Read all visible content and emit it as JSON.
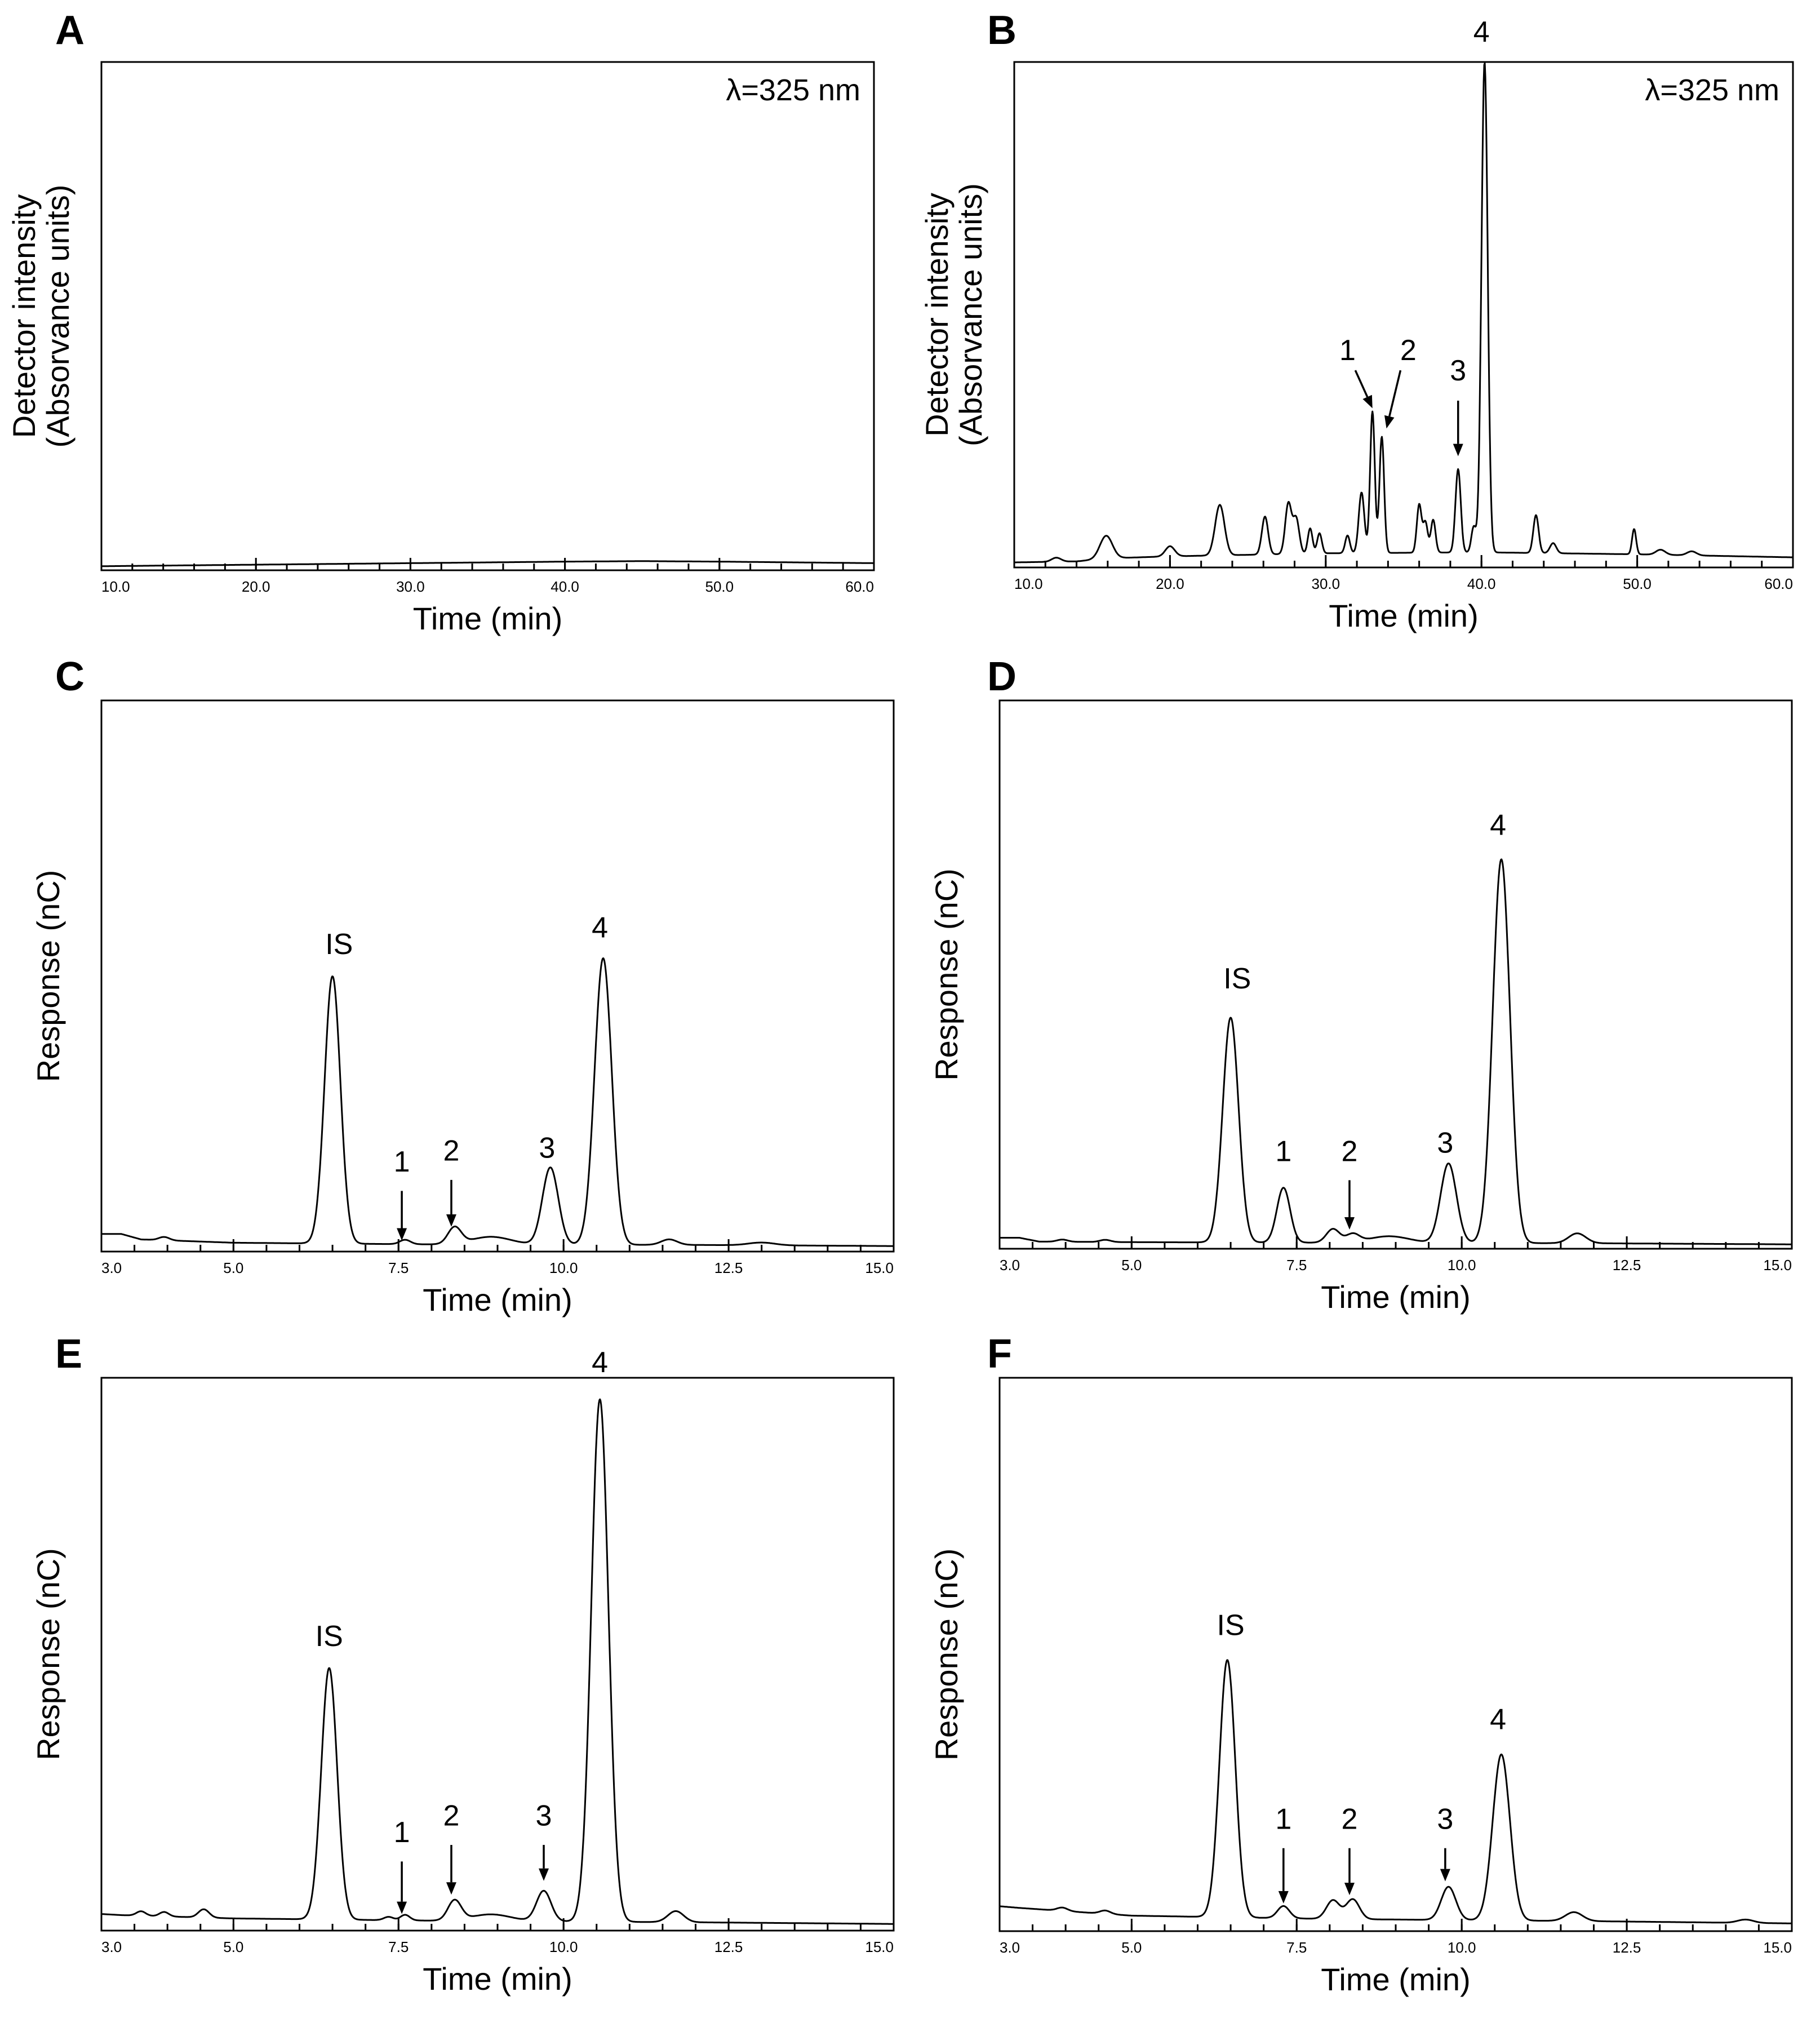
{
  "figure": {
    "colors": {
      "background": "#ffffff",
      "ink": "#000000"
    }
  },
  "chart_data": [
    {
      "id": "A",
      "panel_label": "A",
      "type": "line",
      "xlabel": "Time (min)",
      "ylabel": [
        "Detector intensity",
        "(Absorvance units)"
      ],
      "xlim": [
        10.0,
        60.0
      ],
      "ylim": [
        0,
        1
      ],
      "xticks": [
        10.0,
        20.0,
        30.0,
        40.0,
        50.0,
        60.0
      ],
      "xtick_labels": [
        "10.0",
        "20.0",
        "30.0",
        "40.0",
        "50.0",
        "60.0"
      ],
      "annotation": "λ=325 nm",
      "baseline": [
        [
          10,
          0.008
        ],
        [
          20,
          0.011
        ],
        [
          30,
          0.014
        ],
        [
          40,
          0.017
        ],
        [
          45,
          0.018
        ],
        [
          50,
          0.017
        ],
        [
          60,
          0.014
        ]
      ],
      "peaks": [],
      "labels": []
    },
    {
      "id": "B",
      "panel_label": "B",
      "type": "line",
      "xlabel": "Time (min)",
      "ylabel": [
        "Detector intensity",
        "(Absorvance units)"
      ],
      "xlim": [
        10.0,
        60.0
      ],
      "ylim": [
        0,
        1
      ],
      "xticks": [
        10.0,
        20.0,
        30.0,
        40.0,
        50.0,
        60.0
      ],
      "xtick_labels": [
        "10.0",
        "20.0",
        "30.0",
        "40.0",
        "50.0",
        "60.0"
      ],
      "annotation": "λ=325 nm",
      "baseline": [
        [
          10,
          0.01
        ],
        [
          14,
          0.012
        ],
        [
          16,
          0.018
        ],
        [
          20,
          0.022
        ],
        [
          30,
          0.028
        ],
        [
          40,
          0.03
        ],
        [
          50,
          0.026
        ],
        [
          60,
          0.02
        ]
      ],
      "peaks": [
        {
          "x": 12.7,
          "h": 0.008,
          "w": 0.3
        },
        {
          "x": 15.9,
          "h": 0.045,
          "w": 0.4
        },
        {
          "x": 20.0,
          "h": 0.02,
          "w": 0.3
        },
        {
          "x": 23.2,
          "h": 0.1,
          "w": 0.3
        },
        {
          "x": 26.1,
          "h": 0.075,
          "w": 0.2
        },
        {
          "x": 27.6,
          "h": 0.1,
          "w": 0.2
        },
        {
          "x": 28.1,
          "h": 0.07,
          "w": 0.2
        },
        {
          "x": 29.0,
          "h": 0.05,
          "w": 0.15
        },
        {
          "x": 29.6,
          "h": 0.04,
          "w": 0.15
        },
        {
          "x": 31.4,
          "h": 0.035,
          "w": 0.15
        },
        {
          "x": 32.3,
          "h": 0.12,
          "w": 0.18
        },
        {
          "x": 33.0,
          "h": 0.28,
          "w": 0.15
        },
        {
          "x": 33.6,
          "h": 0.23,
          "w": 0.15
        },
        {
          "x": 36.0,
          "h": 0.095,
          "w": 0.15
        },
        {
          "x": 36.4,
          "h": 0.06,
          "w": 0.15
        },
        {
          "x": 36.9,
          "h": 0.065,
          "w": 0.15
        },
        {
          "x": 38.5,
          "h": 0.165,
          "w": 0.17
        },
        {
          "x": 39.5,
          "h": 0.05,
          "w": 0.15
        },
        {
          "x": 40.2,
          "h": 0.97,
          "w": 0.2
        },
        {
          "x": 43.5,
          "h": 0.075,
          "w": 0.17
        },
        {
          "x": 44.6,
          "h": 0.02,
          "w": 0.2
        },
        {
          "x": 49.8,
          "h": 0.05,
          "w": 0.13
        },
        {
          "x": 51.5,
          "h": 0.01,
          "w": 0.3
        },
        {
          "x": 53.5,
          "h": 0.008,
          "w": 0.3
        }
      ],
      "labels": [
        {
          "text": "1",
          "x": 31.4,
          "y": 0.41,
          "arrow": [
            [
              31.9,
              0.39
            ],
            [
              33.0,
              0.315
            ]
          ]
        },
        {
          "text": "2",
          "x": 35.3,
          "y": 0.41,
          "arrow": [
            [
              34.8,
              0.39
            ],
            [
              33.9,
              0.275
            ]
          ]
        },
        {
          "text": "3",
          "x": 38.5,
          "y": 0.37,
          "arrow": [
            [
              38.5,
              0.33
            ],
            [
              38.5,
              0.22
            ]
          ]
        },
        {
          "text": "4",
          "x": 40.0,
          "y": 1.04
        }
      ]
    },
    {
      "id": "C",
      "panel_label": "C",
      "type": "line",
      "xlabel": "Time (min)",
      "ylabel": [
        "Response (nC)"
      ],
      "xlim": [
        3.0,
        15.0
      ],
      "ylim": [
        0,
        1
      ],
      "xticks": [
        3.0,
        5.0,
        7.5,
        10.0,
        12.5,
        15.0
      ],
      "xtick_labels": [
        "3.0",
        "5.0",
        "7.5",
        "10.0",
        "12.5",
        "15.0"
      ],
      "annotation": "",
      "baseline": [
        [
          3,
          0.032
        ],
        [
          3.3,
          0.032
        ],
        [
          3.6,
          0.022
        ],
        [
          5,
          0.016
        ],
        [
          8,
          0.013
        ],
        [
          12,
          0.012
        ],
        [
          15,
          0.01
        ]
      ],
      "peaks": [
        {
          "x": 3.95,
          "h": 0.006,
          "w": 0.08
        },
        {
          "x": 6.5,
          "h": 0.485,
          "w": 0.12
        },
        {
          "x": 7.6,
          "h": 0.008,
          "w": 0.08
        },
        {
          "x": 8.35,
          "h": 0.03,
          "w": 0.1
        },
        {
          "x": 8.9,
          "h": 0.014,
          "w": 0.3
        },
        {
          "x": 9.8,
          "h": 0.14,
          "w": 0.12
        },
        {
          "x": 10.6,
          "h": 0.52,
          "w": 0.13
        },
        {
          "x": 11.6,
          "h": 0.01,
          "w": 0.12
        },
        {
          "x": 13.0,
          "h": 0.005,
          "w": 0.2
        }
      ],
      "labels": [
        {
          "text": "IS",
          "x": 6.6,
          "y": 0.54
        },
        {
          "text": "1",
          "x": 7.55,
          "y": 0.145,
          "arrow": [
            [
              7.55,
              0.11
            ],
            [
              7.55,
              0.02
            ]
          ]
        },
        {
          "text": "2",
          "x": 8.3,
          "y": 0.165,
          "arrow": [
            [
              8.3,
              0.13
            ],
            [
              8.3,
              0.045
            ]
          ]
        },
        {
          "text": "3",
          "x": 9.75,
          "y": 0.17
        },
        {
          "text": "4",
          "x": 10.55,
          "y": 0.57
        }
      ]
    },
    {
      "id": "D",
      "panel_label": "D",
      "type": "line",
      "xlabel": "Time (min)",
      "ylabel": [
        "Response (nC)"
      ],
      "xlim": [
        3.0,
        15.0
      ],
      "ylim": [
        0,
        1
      ],
      "xticks": [
        3.0,
        5.0,
        7.5,
        10.0,
        12.5,
        15.0
      ],
      "xtick_labels": [
        "3.0",
        "5.0",
        "7.5",
        "10.0",
        "12.5",
        "15.0"
      ],
      "annotation": "",
      "baseline": [
        [
          3,
          0.02
        ],
        [
          3.3,
          0.02
        ],
        [
          3.6,
          0.013
        ],
        [
          5,
          0.012
        ],
        [
          8,
          0.011
        ],
        [
          12,
          0.01
        ],
        [
          15,
          0.008
        ]
      ],
      "peaks": [
        {
          "x": 3.95,
          "h": 0.004,
          "w": 0.08
        },
        {
          "x": 4.6,
          "h": 0.004,
          "w": 0.08
        },
        {
          "x": 6.5,
          "h": 0.41,
          "w": 0.12
        },
        {
          "x": 7.3,
          "h": 0.1,
          "w": 0.1
        },
        {
          "x": 8.05,
          "h": 0.025,
          "w": 0.1
        },
        {
          "x": 8.35,
          "h": 0.015,
          "w": 0.1
        },
        {
          "x": 8.9,
          "h": 0.012,
          "w": 0.3
        },
        {
          "x": 9.8,
          "h": 0.145,
          "w": 0.12
        },
        {
          "x": 10.6,
          "h": 0.7,
          "w": 0.13
        },
        {
          "x": 11.75,
          "h": 0.018,
          "w": 0.13
        }
      ],
      "labels": [
        {
          "text": "IS",
          "x": 6.6,
          "y": 0.475
        },
        {
          "text": "1",
          "x": 7.3,
          "y": 0.16
        },
        {
          "text": "2",
          "x": 8.3,
          "y": 0.16,
          "arrow": [
            [
              8.3,
              0.125
            ],
            [
              8.3,
              0.035
            ]
          ]
        },
        {
          "text": "3",
          "x": 9.75,
          "y": 0.175
        },
        {
          "text": "4",
          "x": 10.55,
          "y": 0.755
        }
      ]
    },
    {
      "id": "E",
      "panel_label": "E",
      "type": "line",
      "xlabel": "Time (min)",
      "ylabel": [
        "Response (nC)"
      ],
      "xlim": [
        3.0,
        15.0
      ],
      "ylim": [
        0,
        1
      ],
      "xticks": [
        3.0,
        5.0,
        7.5,
        10.0,
        12.5,
        15.0
      ],
      "xtick_labels": [
        "3.0",
        "5.0",
        "7.5",
        "10.0",
        "12.5",
        "15.0"
      ],
      "annotation": "",
      "baseline": [
        [
          3,
          0.03
        ],
        [
          3.3,
          0.028
        ],
        [
          5,
          0.022
        ],
        [
          8,
          0.018
        ],
        [
          12,
          0.015
        ],
        [
          15,
          0.012
        ]
      ],
      "peaks": [
        {
          "x": 3.6,
          "h": 0.008,
          "w": 0.07
        },
        {
          "x": 3.95,
          "h": 0.008,
          "w": 0.07
        },
        {
          "x": 4.55,
          "h": 0.015,
          "w": 0.08
        },
        {
          "x": 6.45,
          "h": 0.455,
          "w": 0.12
        },
        {
          "x": 7.35,
          "h": 0.006,
          "w": 0.07
        },
        {
          "x": 7.6,
          "h": 0.01,
          "w": 0.07
        },
        {
          "x": 8.35,
          "h": 0.036,
          "w": 0.1
        },
        {
          "x": 8.9,
          "h": 0.012,
          "w": 0.3
        },
        {
          "x": 9.7,
          "h": 0.055,
          "w": 0.11
        },
        {
          "x": 10.55,
          "h": 0.945,
          "w": 0.13
        },
        {
          "x": 11.7,
          "h": 0.02,
          "w": 0.12
        }
      ],
      "labels": [
        {
          "text": "IS",
          "x": 6.45,
          "y": 0.515
        },
        {
          "text": "1",
          "x": 7.55,
          "y": 0.16,
          "arrow": [
            [
              7.55,
              0.125
            ],
            [
              7.55,
              0.03
            ]
          ]
        },
        {
          "text": "2",
          "x": 8.3,
          "y": 0.19,
          "arrow": [
            [
              8.3,
              0.155
            ],
            [
              8.3,
              0.065
            ]
          ]
        },
        {
          "text": "3",
          "x": 9.7,
          "y": 0.19,
          "arrow": [
            [
              9.7,
              0.155
            ],
            [
              9.7,
              0.09
            ]
          ]
        },
        {
          "text": "4",
          "x": 10.55,
          "y": 1.01
        }
      ]
    },
    {
      "id": "F",
      "panel_label": "F",
      "type": "line",
      "xlabel": "Time (min)",
      "ylabel": [
        "Response (nC)"
      ],
      "xlim": [
        3.0,
        15.0
      ],
      "ylim": [
        0,
        1
      ],
      "xticks": [
        3.0,
        5.0,
        7.5,
        10.0,
        12.5,
        15.0
      ],
      "xtick_labels": [
        "3.0",
        "5.0",
        "7.5",
        "10.0",
        "12.5",
        "15.0"
      ],
      "annotation": "",
      "baseline": [
        [
          3,
          0.045
        ],
        [
          3.3,
          0.042
        ],
        [
          5,
          0.028
        ],
        [
          8,
          0.022
        ],
        [
          12,
          0.018
        ],
        [
          15,
          0.014
        ]
      ],
      "peaks": [
        {
          "x": 3.95,
          "h": 0.006,
          "w": 0.08
        },
        {
          "x": 4.6,
          "h": 0.006,
          "w": 0.08
        },
        {
          "x": 6.45,
          "h": 0.465,
          "w": 0.12
        },
        {
          "x": 7.3,
          "h": 0.022,
          "w": 0.09
        },
        {
          "x": 8.05,
          "h": 0.034,
          "w": 0.1
        },
        {
          "x": 8.35,
          "h": 0.036,
          "w": 0.1
        },
        {
          "x": 9.8,
          "h": 0.06,
          "w": 0.11
        },
        {
          "x": 10.6,
          "h": 0.3,
          "w": 0.13
        },
        {
          "x": 11.7,
          "h": 0.016,
          "w": 0.13
        },
        {
          "x": 14.3,
          "h": 0.006,
          "w": 0.12
        }
      ],
      "labels": [
        {
          "text": "IS",
          "x": 6.5,
          "y": 0.535
        },
        {
          "text": "1",
          "x": 7.3,
          "y": 0.185,
          "arrow": [
            [
              7.3,
              0.15
            ],
            [
              7.3,
              0.05
            ]
          ]
        },
        {
          "text": "2",
          "x": 8.3,
          "y": 0.185,
          "arrow": [
            [
              8.3,
              0.15
            ],
            [
              8.3,
              0.065
            ]
          ]
        },
        {
          "text": "3",
          "x": 9.75,
          "y": 0.185,
          "arrow": [
            [
              9.75,
              0.15
            ],
            [
              9.75,
              0.09
            ]
          ]
        },
        {
          "text": "4",
          "x": 10.55,
          "y": 0.365
        }
      ]
    }
  ]
}
